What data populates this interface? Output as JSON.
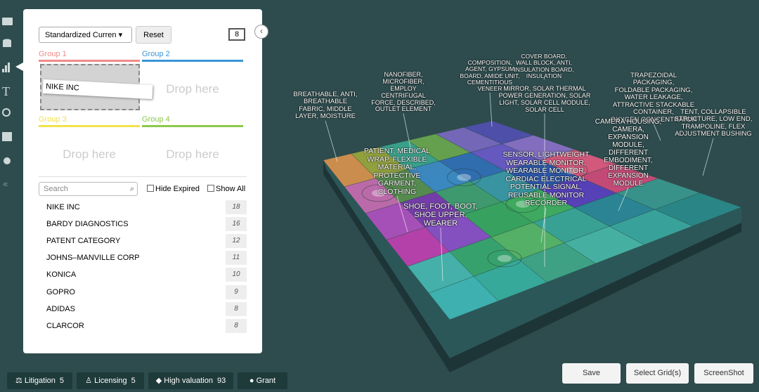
{
  "panel": {
    "select": "Standardized Curren",
    "reset": "Reset",
    "grid_icon": "8",
    "groups": [
      {
        "name": "Group 1",
        "color": "#f08a8a",
        "items": [
          "NIKE INC"
        ]
      },
      {
        "name": "Group 2",
        "color": "#3a95d8",
        "placeholder": "Drop here"
      },
      {
        "name": "Group 3",
        "color": "#f2e24a",
        "placeholder": "Drop here"
      },
      {
        "name": "Group 4",
        "color": "#8cc84b",
        "placeholder": "Drop here"
      }
    ],
    "search_placeholder": "Search",
    "hide_expired": "Hide Expired",
    "show_all": "Show All",
    "rows": [
      {
        "name": "NIKE INC",
        "count": "18"
      },
      {
        "name": "BARDY DIAGNOSTICS",
        "count": "16"
      },
      {
        "name": "PATENT CATEGORY",
        "count": "12"
      },
      {
        "name": "JOHNS–MANVILLE CORP",
        "count": "11"
      },
      {
        "name": "KONICA",
        "count": "10"
      },
      {
        "name": "GOPRO",
        "count": "9"
      },
      {
        "name": "ADIDAS",
        "count": "8"
      },
      {
        "name": "CLARCOR",
        "count": "8"
      }
    ]
  },
  "tags": [
    {
      "label": "Litigation",
      "count": "5"
    },
    {
      "label": "Licensing",
      "count": "5"
    },
    {
      "label": "High valuation",
      "count": "93"
    },
    {
      "label": "Grant"
    }
  ],
  "buttons": [
    "Save",
    "Select Grid(s)",
    "ScreenShot"
  ],
  "map_labels": [
    [
      "BREATHABLE, ANTI,",
      "BREATHABLE",
      "FABRIC, MIDDLE",
      "LAYER, MOISTURE"
    ],
    [
      "NANOFIBER,",
      "MICROFIBER,",
      "EMPLOY",
      "CENTRIFUGAL",
      "FORCE, DESCRIBED,",
      "OUTLET ELEMENT"
    ],
    [
      "COMPOSITION,",
      "AGENT, GYPSUM",
      "BOARD, AMIDE UNIT,",
      "CEMENTITIOUS",
      "VENEER"
    ],
    [
      "COVER BOARD,",
      "WALL BLOCK, ANTI,",
      "INSULATION BOARD,",
      "INSULATION"
    ],
    [
      "MIRROR, SOLAR THERMAL",
      "POWER GENERATION, SOLAR",
      "LIGHT, SOLAR CELL MODULE,",
      "SOLAR CELL"
    ],
    [
      "TRAPEZOIDAL",
      "PACKAGING,",
      "FOLDABLE PACKAGING,",
      "WATER LEAKAGE,",
      "ATTRACTIVE STACKABLE",
      "CONTAINER,",
      "OXYGEN CONCENTRATOR"
    ],
    [
      "TENT, COLLAPSIBLE",
      "STRUCTURE, LOW END,",
      "TRAMPOLINE, FLEX",
      "ADJUSTMENT BUSHING"
    ],
    [
      "CAMERA HOUSING,",
      "CAMERA,",
      "EXPANSION",
      "MODULE,",
      "DIFFERENT",
      "EMBODIMENT,",
      "DIFFERENT",
      "EXPANSION",
      "MODULE"
    ],
    [
      "PATIENT, MEDICAL",
      "WRAP, FLEXIBLE",
      "MATERIAL,",
      "PROTECTIVE",
      "GARMENT,",
      "CLOTHING"
    ],
    [
      "SENSOR, LIGHTWEIGHT",
      "WEARABLE MONITOR,",
      "WEARABLE MONITOR,",
      "CARDIAC ELECTRICAL",
      "POTENTIAL SIGNAL,",
      "REUSABLE MONITOR",
      "RECORDER"
    ],
    [
      "SHOE, FOOT, BOOT,",
      "SHOE UPPER,",
      "WEARER"
    ]
  ]
}
